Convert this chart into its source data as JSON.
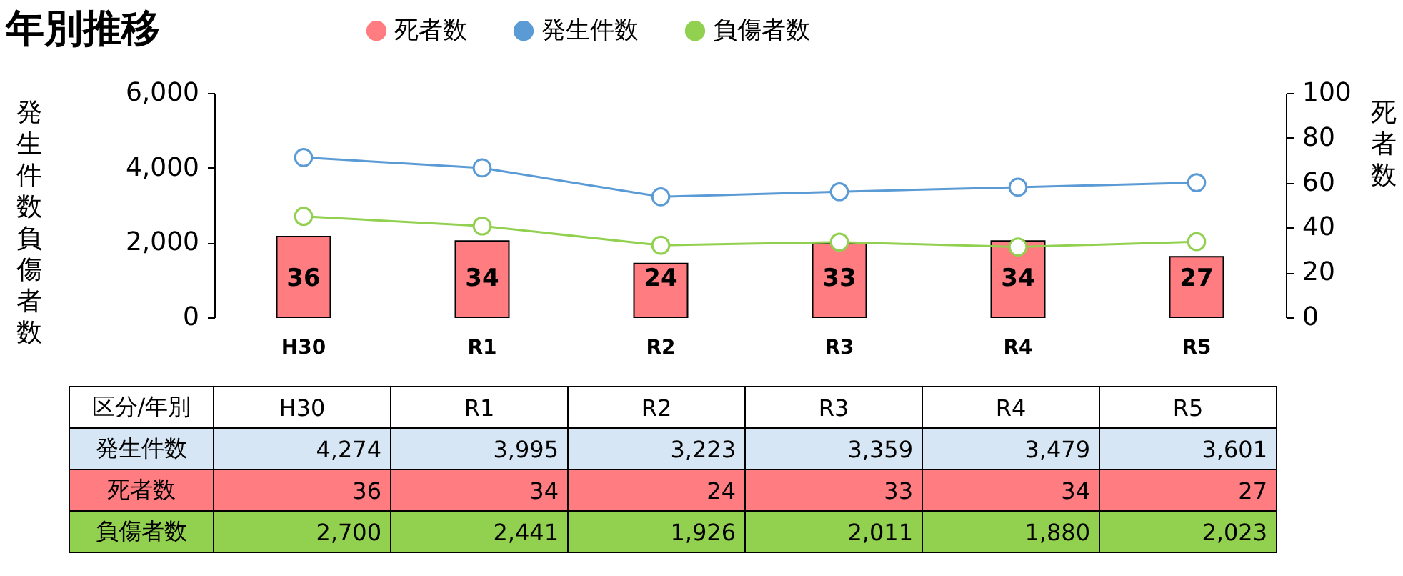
{
  "chart_data": {
    "type": "bar",
    "title": "年別推移",
    "ylabel": "発生件数負傷者数",
    "y2label": "死者数",
    "annotations": [
      "区分/年別"
    ],
    "categories": [
      "H30",
      "R1",
      "R2",
      "R3",
      "R4",
      "R5"
    ],
    "series": [
      {
        "name": "死者数",
        "axis": "y2",
        "color": "#ff7c80",
        "values": [
          36,
          34,
          24,
          33,
          34,
          27
        ],
        "value_labels": [
          "36",
          "34",
          "24",
          "33",
          "34",
          "27"
        ]
      },
      {
        "name": "発生件数",
        "type": "line",
        "color": "#5b9bd5",
        "values": [
          4274,
          3995,
          3223,
          3359,
          3479,
          3601
        ],
        "value_labels": [
          "4,274",
          "3,995",
          "3,223",
          "3,359",
          "3,479",
          "3,601"
        ]
      },
      {
        "name": "負傷者数",
        "type": "line",
        "color": "#92d050",
        "values": [
          2700,
          2441,
          1926,
          2011,
          1880,
          2023
        ],
        "value_labels": [
          "2,700",
          "2,441",
          "1,926",
          "2,011",
          "1,880",
          "2,023"
        ]
      }
    ],
    "ylim": [
      0,
      6000
    ],
    "yticks": [
      0,
      {
        "value": 2000,
        "label": "2,000"
      },
      {
        "value": 4000,
        "label": "4,000"
      },
      {
        "value": 6000,
        "label": "6,000"
      }
    ],
    "y2lim": [
      0,
      100
    ],
    "y2ticks": [
      0,
      20,
      40,
      60,
      80,
      100
    ],
    "legend": "top",
    "marker": "circle"
  }
}
